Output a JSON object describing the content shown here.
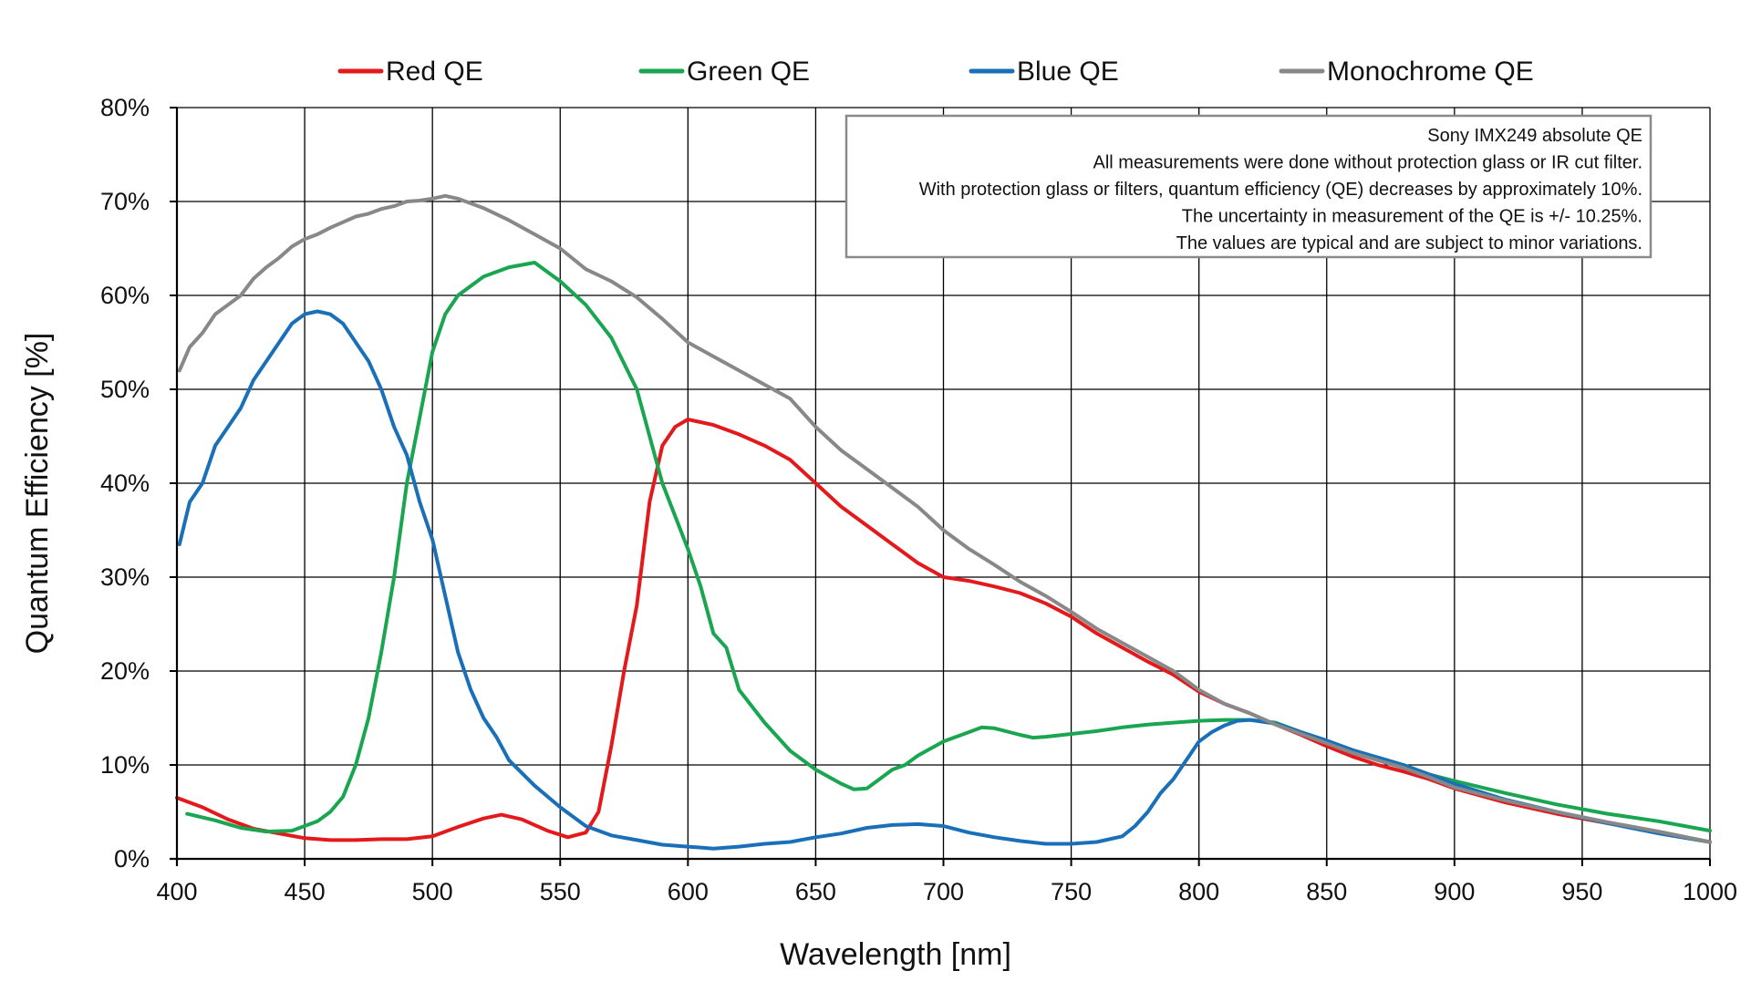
{
  "chart_data": {
    "type": "line",
    "title": "",
    "xlabel": "Wavelength [nm]",
    "ylabel": "Quantum Efficiency [%]",
    "xlim": [
      400,
      1000
    ],
    "ylim": [
      0,
      80
    ],
    "xticks": [
      400,
      450,
      500,
      550,
      600,
      650,
      700,
      750,
      800,
      850,
      900,
      950,
      1000
    ],
    "yticks": [
      0,
      10,
      20,
      30,
      40,
      50,
      60,
      70,
      80
    ],
    "xtick_labels": [
      "400",
      "450",
      "500",
      "550",
      "600",
      "650",
      "700",
      "750",
      "800",
      "850",
      "900",
      "950",
      "1000"
    ],
    "ytick_labels": [
      "0%",
      "10%",
      "20%",
      "30%",
      "40%",
      "50%",
      "60%",
      "70%",
      "80%"
    ],
    "grid": true,
    "legend_position": "top",
    "annotation": {
      "position": "top-right",
      "lines": [
        "Sony IMX249 absolute QE",
        "All measurements were done without protection glass or IR cut filter.",
        "With protection glass or filters, quantum efficiency (QE) decreases by approximately 10%.",
        "The uncertainty in measurement of the QE is +/- 10.25%.",
        "The values are typical and are subject to minor variations."
      ]
    },
    "series": [
      {
        "name": "Red QE",
        "color": "#e3191b",
        "points": [
          [
            400,
            6.5
          ],
          [
            410,
            5.5
          ],
          [
            420,
            4.2
          ],
          [
            430,
            3.2
          ],
          [
            440,
            2.7
          ],
          [
            450,
            2.2
          ],
          [
            460,
            2.0
          ],
          [
            470,
            2.0
          ],
          [
            480,
            2.1
          ],
          [
            490,
            2.1
          ],
          [
            500,
            2.4
          ],
          [
            510,
            3.4
          ],
          [
            520,
            4.3
          ],
          [
            527,
            4.7
          ],
          [
            535,
            4.2
          ],
          [
            545,
            3.0
          ],
          [
            553,
            2.3
          ],
          [
            560,
            2.8
          ],
          [
            565,
            5.0
          ],
          [
            570,
            12.0
          ],
          [
            575,
            20.0
          ],
          [
            580,
            27.0
          ],
          [
            585,
            38.0
          ],
          [
            590,
            44.0
          ],
          [
            595,
            46.0
          ],
          [
            600,
            46.8
          ],
          [
            610,
            46.2
          ],
          [
            620,
            45.2
          ],
          [
            630,
            44.0
          ],
          [
            640,
            42.5
          ],
          [
            650,
            40.0
          ],
          [
            660,
            37.5
          ],
          [
            670,
            35.5
          ],
          [
            680,
            33.5
          ],
          [
            690,
            31.5
          ],
          [
            700,
            30.0
          ],
          [
            710,
            29.6
          ],
          [
            720,
            29.0
          ],
          [
            730,
            28.3
          ],
          [
            740,
            27.2
          ],
          [
            750,
            25.8
          ],
          [
            760,
            24.0
          ],
          [
            770,
            22.5
          ],
          [
            780,
            21.0
          ],
          [
            790,
            19.6
          ],
          [
            800,
            17.8
          ],
          [
            810,
            16.5
          ],
          [
            820,
            15.5
          ],
          [
            830,
            14.3
          ],
          [
            840,
            13.2
          ],
          [
            850,
            12.0
          ],
          [
            860,
            10.9
          ],
          [
            870,
            10.0
          ],
          [
            880,
            9.3
          ],
          [
            890,
            8.5
          ],
          [
            900,
            7.5
          ],
          [
            920,
            6.0
          ],
          [
            940,
            4.8
          ],
          [
            960,
            3.8
          ],
          [
            980,
            2.8
          ],
          [
            1000,
            1.8
          ]
        ]
      },
      {
        "name": "Green QE",
        "color": "#1aa650",
        "points": [
          [
            404,
            4.8
          ],
          [
            415,
            4.1
          ],
          [
            425,
            3.3
          ],
          [
            435,
            2.9
          ],
          [
            445,
            3.0
          ],
          [
            455,
            4.0
          ],
          [
            460,
            5.0
          ],
          [
            465,
            6.6
          ],
          [
            470,
            10.0
          ],
          [
            475,
            15.0
          ],
          [
            480,
            22.0
          ],
          [
            485,
            30.0
          ],
          [
            490,
            40.0
          ],
          [
            495,
            47.0
          ],
          [
            500,
            54.0
          ],
          [
            505,
            58.0
          ],
          [
            510,
            60.0
          ],
          [
            520,
            62.0
          ],
          [
            530,
            63.0
          ],
          [
            540,
            63.5
          ],
          [
            550,
            61.5
          ],
          [
            560,
            59.0
          ],
          [
            570,
            55.5
          ],
          [
            580,
            50.0
          ],
          [
            585,
            45.0
          ],
          [
            590,
            40.0
          ],
          [
            600,
            33.0
          ],
          [
            605,
            29.0
          ],
          [
            610,
            24.0
          ],
          [
            615,
            22.5
          ],
          [
            620,
            18.0
          ],
          [
            630,
            14.5
          ],
          [
            640,
            11.5
          ],
          [
            650,
            9.5
          ],
          [
            660,
            8.0
          ],
          [
            665,
            7.4
          ],
          [
            670,
            7.5
          ],
          [
            675,
            8.5
          ],
          [
            680,
            9.5
          ],
          [
            685,
            10.0
          ],
          [
            690,
            11.0
          ],
          [
            700,
            12.5
          ],
          [
            710,
            13.5
          ],
          [
            715,
            14.0
          ],
          [
            720,
            13.9
          ],
          [
            730,
            13.2
          ],
          [
            735,
            12.9
          ],
          [
            740,
            13.0
          ],
          [
            750,
            13.3
          ],
          [
            760,
            13.6
          ],
          [
            770,
            14.0
          ],
          [
            780,
            14.3
          ],
          [
            790,
            14.5
          ],
          [
            800,
            14.7
          ],
          [
            810,
            14.8
          ],
          [
            820,
            14.8
          ],
          [
            830,
            14.5
          ],
          [
            840,
            13.5
          ],
          [
            850,
            12.5
          ],
          [
            860,
            11.5
          ],
          [
            870,
            10.8
          ],
          [
            880,
            10.0
          ],
          [
            890,
            9.0
          ],
          [
            900,
            8.3
          ],
          [
            920,
            7.0
          ],
          [
            940,
            5.8
          ],
          [
            960,
            4.8
          ],
          [
            980,
            4.0
          ],
          [
            1000,
            3.0
          ]
        ]
      },
      {
        "name": "Blue QE",
        "color": "#1a70b8",
        "points": [
          [
            401,
            33.5
          ],
          [
            405,
            38.0
          ],
          [
            410,
            40.0
          ],
          [
            415,
            44.0
          ],
          [
            420,
            46.0
          ],
          [
            425,
            48.0
          ],
          [
            430,
            51.0
          ],
          [
            435,
            53.0
          ],
          [
            440,
            55.0
          ],
          [
            445,
            57.0
          ],
          [
            450,
            58.0
          ],
          [
            455,
            58.3
          ],
          [
            460,
            58.0
          ],
          [
            465,
            57.0
          ],
          [
            470,
            55.0
          ],
          [
            475,
            53.0
          ],
          [
            480,
            50.0
          ],
          [
            485,
            46.0
          ],
          [
            490,
            43.0
          ],
          [
            495,
            38.0
          ],
          [
            500,
            34.0
          ],
          [
            505,
            28.0
          ],
          [
            510,
            22.0
          ],
          [
            515,
            18.0
          ],
          [
            520,
            15.0
          ],
          [
            525,
            13.0
          ],
          [
            530,
            10.5
          ],
          [
            540,
            7.8
          ],
          [
            550,
            5.5
          ],
          [
            560,
            3.5
          ],
          [
            570,
            2.5
          ],
          [
            580,
            2.0
          ],
          [
            590,
            1.5
          ],
          [
            600,
            1.3
          ],
          [
            610,
            1.1
          ],
          [
            620,
            1.3
          ],
          [
            630,
            1.6
          ],
          [
            640,
            1.8
          ],
          [
            650,
            2.3
          ],
          [
            660,
            2.7
          ],
          [
            670,
            3.3
          ],
          [
            680,
            3.6
          ],
          [
            690,
            3.7
          ],
          [
            700,
            3.5
          ],
          [
            710,
            2.8
          ],
          [
            720,
            2.3
          ],
          [
            730,
            1.9
          ],
          [
            740,
            1.6
          ],
          [
            750,
            1.6
          ],
          [
            760,
            1.8
          ],
          [
            770,
            2.4
          ],
          [
            775,
            3.5
          ],
          [
            780,
            5.0
          ],
          [
            785,
            7.0
          ],
          [
            790,
            8.5
          ],
          [
            795,
            10.5
          ],
          [
            800,
            12.5
          ],
          [
            805,
            13.5
          ],
          [
            810,
            14.2
          ],
          [
            815,
            14.7
          ],
          [
            820,
            14.8
          ],
          [
            830,
            14.4
          ],
          [
            840,
            13.5
          ],
          [
            850,
            12.6
          ],
          [
            860,
            11.6
          ],
          [
            870,
            10.8
          ],
          [
            880,
            10.0
          ],
          [
            890,
            9.0
          ],
          [
            900,
            8.0
          ],
          [
            920,
            6.3
          ],
          [
            940,
            5.0
          ],
          [
            960,
            3.8
          ],
          [
            980,
            2.7
          ],
          [
            1000,
            1.8
          ]
        ]
      },
      {
        "name": "Monochrome QE",
        "color": "#888888",
        "points": [
          [
            401,
            52.0
          ],
          [
            405,
            54.5
          ],
          [
            410,
            56.0
          ],
          [
            415,
            58.0
          ],
          [
            420,
            59.0
          ],
          [
            425,
            60.0
          ],
          [
            430,
            61.8
          ],
          [
            435,
            63.0
          ],
          [
            440,
            64.0
          ],
          [
            445,
            65.2
          ],
          [
            450,
            66.0
          ],
          [
            455,
            66.5
          ],
          [
            460,
            67.2
          ],
          [
            465,
            67.8
          ],
          [
            470,
            68.4
          ],
          [
            475,
            68.7
          ],
          [
            480,
            69.2
          ],
          [
            485,
            69.5
          ],
          [
            490,
            70.0
          ],
          [
            495,
            70.1
          ],
          [
            500,
            70.3
          ],
          [
            505,
            70.6
          ],
          [
            510,
            70.3
          ],
          [
            520,
            69.3
          ],
          [
            530,
            68.0
          ],
          [
            540,
            66.5
          ],
          [
            550,
            65.0
          ],
          [
            560,
            62.8
          ],
          [
            570,
            61.5
          ],
          [
            580,
            59.8
          ],
          [
            590,
            57.5
          ],
          [
            600,
            55.0
          ],
          [
            610,
            53.5
          ],
          [
            620,
            52.0
          ],
          [
            630,
            50.5
          ],
          [
            640,
            49.0
          ],
          [
            650,
            46.0
          ],
          [
            660,
            43.5
          ],
          [
            670,
            41.5
          ],
          [
            680,
            39.5
          ],
          [
            690,
            37.5
          ],
          [
            700,
            35.0
          ],
          [
            710,
            33.0
          ],
          [
            720,
            31.3
          ],
          [
            730,
            29.5
          ],
          [
            740,
            28.0
          ],
          [
            750,
            26.3
          ],
          [
            760,
            24.5
          ],
          [
            770,
            23.0
          ],
          [
            780,
            21.5
          ],
          [
            790,
            20.0
          ],
          [
            800,
            18.0
          ],
          [
            810,
            16.5
          ],
          [
            820,
            15.5
          ],
          [
            830,
            14.3
          ],
          [
            840,
            13.3
          ],
          [
            850,
            12.3
          ],
          [
            860,
            11.3
          ],
          [
            870,
            10.5
          ],
          [
            880,
            9.7
          ],
          [
            890,
            8.7
          ],
          [
            900,
            7.6
          ],
          [
            920,
            6.2
          ],
          [
            940,
            5.0
          ],
          [
            960,
            3.9
          ],
          [
            980,
            2.9
          ],
          [
            1000,
            1.8
          ]
        ]
      }
    ]
  }
}
